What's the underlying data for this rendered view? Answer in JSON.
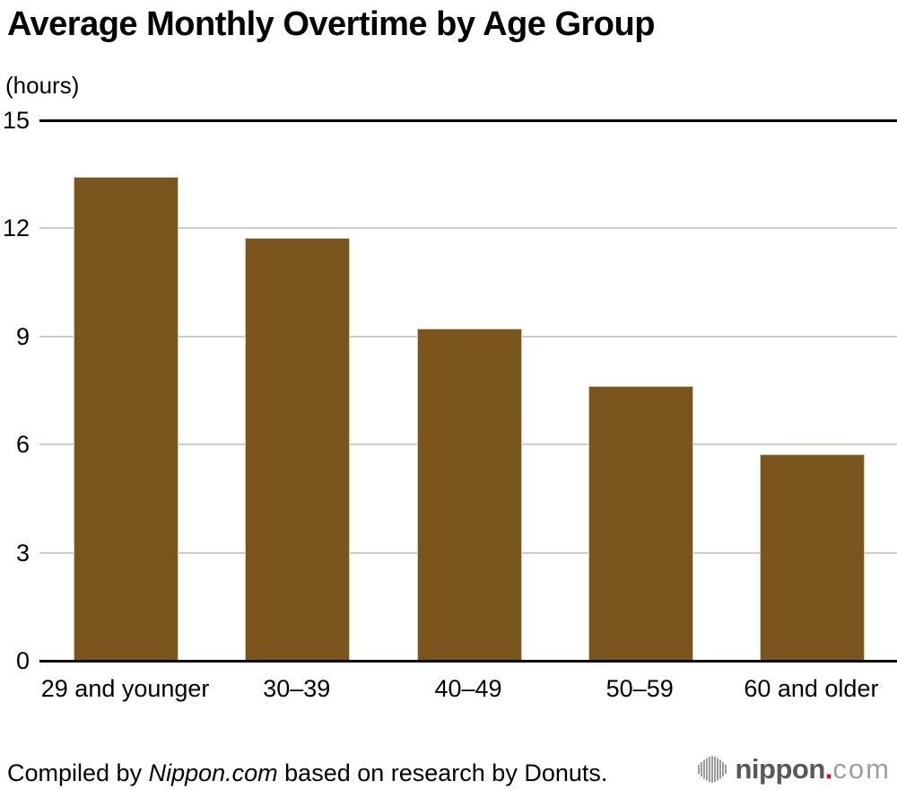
{
  "chart_data": {
    "type": "bar",
    "title": "Average Monthly Overtime by Age Group",
    "ylabel": "(hours)",
    "xlabel": "",
    "categories": [
      "29 and younger",
      "30–39",
      "40–49",
      "50–59",
      "60 and older"
    ],
    "values": [
      13.4,
      11.7,
      9.2,
      7.6,
      5.7
    ],
    "ylim": [
      0,
      15
    ],
    "yticks": [
      0,
      3,
      6,
      9,
      12,
      15
    ],
    "grid": true,
    "legend": "none",
    "bar_color": "#7a551d",
    "bar_border_color": "#d5cbb2",
    "gridline_color": "#cdcdcd",
    "axis_line_color": "#000000",
    "text_color": "#000000"
  },
  "footer": {
    "prefix": "Compiled by ",
    "source": "Nippon.com",
    "suffix": " based on research by Donuts."
  },
  "logo": {
    "brand": "nippon",
    "dot": ".",
    "tld": "com",
    "icon": "soundwave-bars-icon",
    "brand_color": "#595757",
    "dot_color": "#e60012",
    "tld_color": "#9e9f9f",
    "icon_color": "#9b9b9b"
  }
}
